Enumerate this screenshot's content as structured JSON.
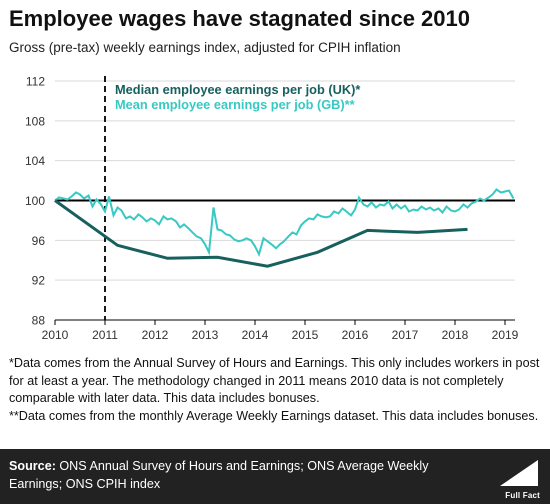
{
  "header": {
    "title": "Employee wages have stagnated since 2010",
    "subtitle": "Gross (pre-tax) weekly earnings index, adjusted for CPIH inflation"
  },
  "notes": {
    "note1": "*Data comes from the Annual Survey of Hours and Earnings. This only includes workers in post for at least a year. The methodology changed in 2011 means 2010 data is not completely comparable with later data.  This data includes bonuses.",
    "note2": "**Data comes from the monthly Average Weekly Earnings dataset. This data includes bonuses."
  },
  "footer": {
    "source_label": "Source:",
    "source_text": " ONS Annual Survey of Hours and Earnings; ONS Average Weekly Earnings; ONS CPIH index",
    "logo_text": "Full Fact"
  },
  "colors": {
    "median": "#17605e",
    "mean": "#38c9c4",
    "baseline": "#000000",
    "grid": "#d9d9d9",
    "footer_bg": "#222222"
  },
  "chart_data": {
    "type": "line",
    "title": "",
    "xlabel": "",
    "ylabel": "",
    "xlim": [
      2010,
      2019.2
    ],
    "ylim": [
      88,
      112
    ],
    "xticks": [
      2010,
      2011,
      2012,
      2013,
      2014,
      2015,
      2016,
      2017,
      2018,
      2019
    ],
    "yticks": [
      88,
      92,
      96,
      100,
      104,
      108,
      112
    ],
    "grid": "horizontal",
    "legend_position": "top-left",
    "baseline_value": 100,
    "vertical_marker_x": 2011,
    "series": [
      {
        "name": "Median employee earnings per job (UK)*",
        "color": "#17605e",
        "x": [
          2010,
          2011.25,
          2012.25,
          2013.25,
          2014.25,
          2015.25,
          2016.25,
          2017.25,
          2018.25
        ],
        "values": [
          100,
          95.5,
          94.2,
          94.3,
          93.4,
          94.8,
          97.0,
          96.8,
          97.1
        ]
      },
      {
        "name": "Mean employee earnings per job (GB)**",
        "color": "#38c9c4",
        "x": [
          2010.0,
          2010.08,
          2010.17,
          2010.25,
          2010.33,
          2010.42,
          2010.5,
          2010.58,
          2010.67,
          2010.75,
          2010.83,
          2010.92,
          2011.0,
          2011.08,
          2011.17,
          2011.25,
          2011.33,
          2011.42,
          2011.5,
          2011.58,
          2011.67,
          2011.75,
          2011.83,
          2011.92,
          2012.0,
          2012.08,
          2012.17,
          2012.25,
          2012.33,
          2012.42,
          2012.5,
          2012.58,
          2012.67,
          2012.75,
          2012.83,
          2012.92,
          2013.0,
          2013.08,
          2013.17,
          2013.25,
          2013.33,
          2013.42,
          2013.5,
          2013.58,
          2013.67,
          2013.75,
          2013.83,
          2013.92,
          2014.0,
          2014.08,
          2014.17,
          2014.25,
          2014.33,
          2014.42,
          2014.5,
          2014.58,
          2014.67,
          2014.75,
          2014.83,
          2014.92,
          2015.0,
          2015.08,
          2015.17,
          2015.25,
          2015.33,
          2015.42,
          2015.5,
          2015.58,
          2015.67,
          2015.75,
          2015.83,
          2015.92,
          2016.0,
          2016.08,
          2016.17,
          2016.25,
          2016.33,
          2016.42,
          2016.5,
          2016.58,
          2016.67,
          2016.75,
          2016.83,
          2016.92,
          2017.0,
          2017.08,
          2017.17,
          2017.25,
          2017.33,
          2017.42,
          2017.5,
          2017.58,
          2017.67,
          2017.75,
          2017.83,
          2017.92,
          2018.0,
          2018.08,
          2018.17,
          2018.25,
          2018.33,
          2018.42,
          2018.5,
          2018.58,
          2018.67,
          2018.75,
          2018.83,
          2018.92,
          2019.0,
          2019.08,
          2019.17
        ],
        "values": [
          100.0,
          100.3,
          100.2,
          100.1,
          100.4,
          100.8,
          100.6,
          100.2,
          100.5,
          99.4,
          100.1,
          99.6,
          98.9,
          100.4,
          98.5,
          99.3,
          99.0,
          98.2,
          98.4,
          98.1,
          98.6,
          98.3,
          97.9,
          98.2,
          98.0,
          97.6,
          98.4,
          98.1,
          98.2,
          97.9,
          97.3,
          97.6,
          97.2,
          96.8,
          96.4,
          96.2,
          95.6,
          94.8,
          99.3,
          97.1,
          97.0,
          96.6,
          96.5,
          96.1,
          95.9,
          96.0,
          96.2,
          96.0,
          95.4,
          94.6,
          96.2,
          95.9,
          95.6,
          95.2,
          95.6,
          95.9,
          96.4,
          96.8,
          96.6,
          97.5,
          97.9,
          98.2,
          98.1,
          98.6,
          98.4,
          98.3,
          98.4,
          98.9,
          98.7,
          99.2,
          98.9,
          98.5,
          99.1,
          100.3,
          99.6,
          99.4,
          99.8,
          99.3,
          99.6,
          99.5,
          99.9,
          99.2,
          99.6,
          99.2,
          99.5,
          98.9,
          99.1,
          99.0,
          99.4,
          99.1,
          99.3,
          99.0,
          99.2,
          98.8,
          99.4,
          99.0,
          98.9,
          99.1,
          99.6,
          99.3,
          99.7,
          99.9,
          100.2,
          100.0,
          100.3,
          100.6,
          101.1,
          100.8,
          100.9,
          101.0,
          100.2
        ]
      }
    ]
  }
}
